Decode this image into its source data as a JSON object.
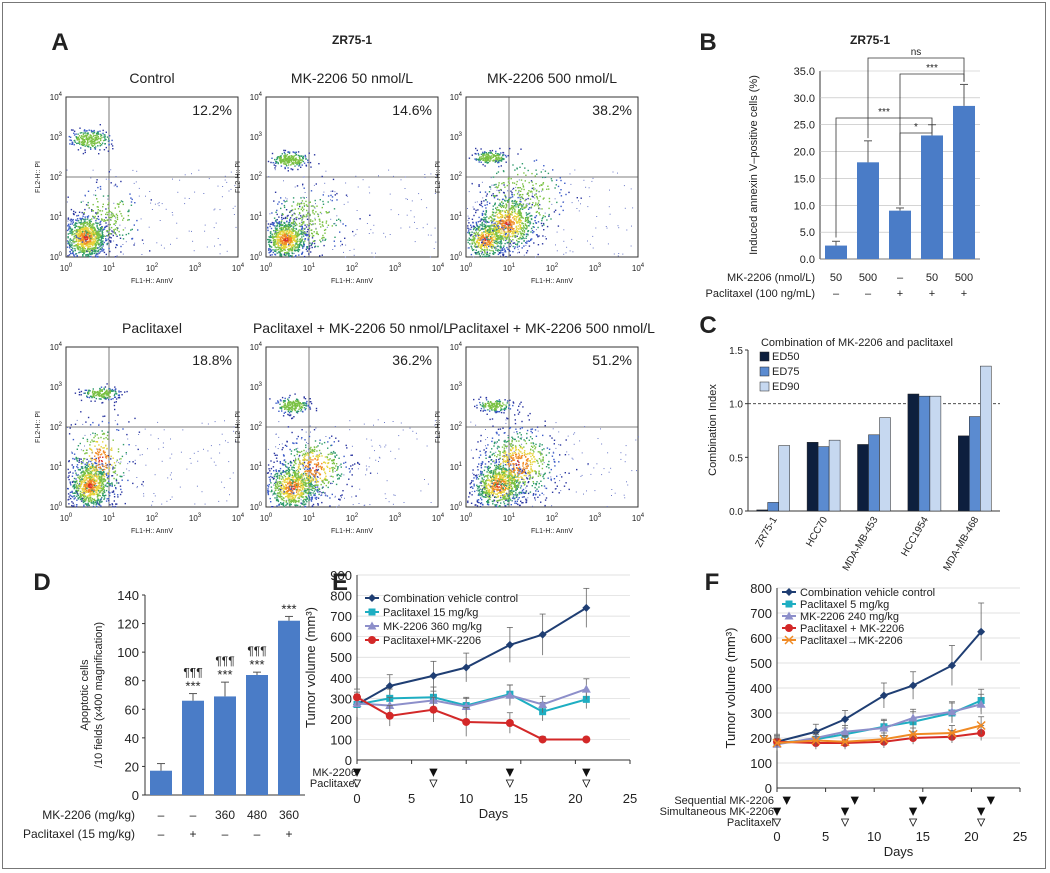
{
  "colors": {
    "bar_blue": "#4a7cc7",
    "navy": "#1f3e73",
    "cyan": "#1eaec2",
    "purple": "#8d8fca",
    "red": "#d32828",
    "orange": "#f08a24",
    "ed50": "#0d1f3e",
    "ed75": "#5b8bd0",
    "ed90": "#c6d8f0",
    "axis": "#333333"
  },
  "panelA": {
    "letter": "A",
    "cell_line": "ZR75-1",
    "x_axis_label": "FL1-H:: AnnV",
    "y_axis_label": "FL2-H:: PI",
    "tick_base": "10",
    "tick_exponents": [
      "0",
      "1",
      "2",
      "3",
      "4"
    ],
    "plots": [
      {
        "title": "Control",
        "percent": "12.2%"
      },
      {
        "title": "MK-2206 50 nmol/L",
        "percent": "14.6%"
      },
      {
        "title": "MK-2206 500 nmol/L",
        "percent": "38.2%"
      },
      {
        "title": "Paclitaxel",
        "percent": "18.8%"
      },
      {
        "title": "Paclitaxel + MK-2206 50 nmol/L",
        "percent": "36.2%"
      },
      {
        "title": "Paclitaxel + MK-2206 500 nmol/L",
        "percent": "51.2%"
      }
    ]
  },
  "chart_data": [
    {
      "panel": "B",
      "type": "bar",
      "title": "ZR75-1",
      "ylabel": "Induced annexin V–positive cells (%)",
      "ylim": [
        0,
        35
      ],
      "yticks": [
        "0.0",
        "5.0",
        "10.0",
        "15.0",
        "20.0",
        "25.0",
        "30.0",
        "35.0"
      ],
      "values": [
        2.5,
        18.0,
        9.0,
        23.0,
        28.5
      ],
      "errors": [
        0.8,
        4.0,
        0.5,
        2.0,
        4.0
      ],
      "row_labels": [
        "MK-2206 (nmol/L)",
        "Paclitaxel (100 ng/mL)"
      ],
      "mk2206": [
        "50",
        "500",
        "–",
        "50",
        "500"
      ],
      "paclitaxel": [
        "–",
        "–",
        "+",
        "+",
        "+"
      ],
      "significance": [
        "ns",
        "***",
        "***",
        "*"
      ]
    },
    {
      "panel": "C",
      "type": "bar",
      "title": "Combination  of MK-2206 and  paclitaxel",
      "ylabel": "Combination Index",
      "ylim": [
        0,
        1.5
      ],
      "yticks": [
        "0.0",
        "0.5",
        "1.0",
        "1.5"
      ],
      "reference_line": 1.0,
      "categories": [
        "ZR75-1",
        "HCC70",
        "MDA-MB-453",
        "HCC1954",
        "MDA-MB-468"
      ],
      "series": [
        {
          "name": "ED50",
          "values": [
            0.01,
            0.64,
            0.62,
            1.09,
            0.7
          ]
        },
        {
          "name": "ED75",
          "values": [
            0.08,
            0.6,
            0.71,
            1.07,
            0.88
          ]
        },
        {
          "name": "ED90",
          "values": [
            0.61,
            0.66,
            0.87,
            1.07,
            1.35
          ]
        }
      ]
    },
    {
      "panel": "D",
      "type": "bar",
      "ylabel": "Apoptotic cells /10 fields (x400 magnification)",
      "ylim": [
        0,
        140
      ],
      "yticks": [
        "0",
        "20",
        "40",
        "60",
        "80",
        "100",
        "120",
        "140"
      ],
      "values": [
        17,
        66,
        69,
        84,
        122
      ],
      "errors": [
        5,
        5,
        10,
        2,
        3
      ],
      "row_labels": [
        "MK-2206 (mg/kg)",
        "Paclitaxel (15 mg/kg)"
      ],
      "mk2206": [
        "–",
        "–",
        "360",
        "480",
        "360"
      ],
      "paclitaxel": [
        "–",
        "+",
        "–",
        "–",
        "+"
      ],
      "stars": [
        "",
        "***",
        "***",
        "***",
        "***"
      ],
      "pilcrows": [
        "",
        "¶¶¶",
        "¶¶¶",
        "¶¶¶",
        ""
      ]
    },
    {
      "panel": "E",
      "type": "line",
      "xlabel": "Days",
      "ylabel": "Tumor volume (mm³)",
      "xlim": [
        0,
        25
      ],
      "ylim": [
        0,
        900
      ],
      "xticks": [
        "0",
        "5",
        "10",
        "15",
        "20",
        "25"
      ],
      "yticks": [
        "0",
        "100",
        "200",
        "300",
        "400",
        "500",
        "600",
        "700",
        "800",
        "900"
      ],
      "series": [
        {
          "name": "Combination vehicle control",
          "x": [
            0,
            3,
            7,
            10,
            14,
            17,
            21
          ],
          "y": [
            270,
            360,
            410,
            450,
            560,
            610,
            740
          ],
          "err": [
            60,
            55,
            70,
            70,
            85,
            100,
            95
          ]
        },
        {
          "name": "Paclitaxel 15 mg/kg",
          "x": [
            0,
            3,
            7,
            10,
            14,
            17,
            21
          ],
          "y": [
            270,
            300,
            305,
            265,
            320,
            235,
            295
          ],
          "err": [
            50,
            45,
            50,
            40,
            45,
            45,
            45
          ]
        },
        {
          "name": "MK-2206 360 mg/kg",
          "x": [
            0,
            3,
            7,
            10,
            14,
            17,
            21
          ],
          "y": [
            275,
            265,
            290,
            260,
            315,
            270,
            345
          ],
          "err": [
            45,
            40,
            45,
            40,
            50,
            40,
            50
          ]
        },
        {
          "name": "Paclitaxel+MK-2206",
          "x": [
            0,
            3,
            7,
            10,
            14,
            17,
            21
          ],
          "y": [
            305,
            215,
            245,
            185,
            180,
            100,
            100
          ],
          "err": [
            40,
            50,
            60,
            70,
            50,
            15,
            10
          ]
        }
      ],
      "dosing": {
        "MK-2206": [
          0,
          7,
          14,
          21
        ],
        "Paclitaxel": [
          0,
          7,
          14,
          21
        ]
      },
      "dosing_labels": [
        "MK-2206",
        "Paclitaxel"
      ]
    },
    {
      "panel": "F",
      "type": "line",
      "xlabel": "Days",
      "ylabel": "Tumor volume (mm³)",
      "xlim": [
        0,
        25
      ],
      "ylim": [
        0,
        800
      ],
      "xticks": [
        "0",
        "5",
        "10",
        "15",
        "20",
        "25"
      ],
      "yticks": [
        "0",
        "100",
        "200",
        "300",
        "400",
        "500",
        "600",
        "700",
        "800"
      ],
      "series": [
        {
          "name": "Combination vehicle control",
          "x": [
            0,
            4,
            7,
            11,
            14,
            18,
            21
          ],
          "y": [
            185,
            225,
            275,
            370,
            410,
            490,
            625
          ],
          "err": [
            30,
            30,
            35,
            50,
            55,
            80,
            115
          ]
        },
        {
          "name": "Paclitaxel 5 mg/kg",
          "x": [
            0,
            4,
            7,
            11,
            14,
            18,
            21
          ],
          "y": [
            180,
            195,
            215,
            245,
            265,
            300,
            350
          ],
          "err": [
            25,
            20,
            25,
            30,
            40,
            40,
            45
          ]
        },
        {
          "name": "MK-2206 240 mg/kg",
          "x": [
            0,
            4,
            7,
            11,
            14,
            18,
            21
          ],
          "y": [
            175,
            200,
            225,
            240,
            280,
            305,
            335
          ],
          "err": [
            25,
            25,
            25,
            30,
            35,
            40,
            40
          ]
        },
        {
          "name": "Paclitaxel + MK-2206",
          "x": [
            0,
            4,
            7,
            11,
            14,
            18,
            21
          ],
          "y": [
            185,
            180,
            180,
            185,
            200,
            205,
            220
          ],
          "err": [
            25,
            25,
            25,
            25,
            25,
            25,
            30
          ]
        },
        {
          "name": "Paclitaxel→MK-2206",
          "x": [
            0,
            4,
            7,
            11,
            14,
            18,
            21
          ],
          "y": [
            180,
            190,
            185,
            195,
            215,
            220,
            250
          ],
          "err": [
            20,
            25,
            25,
            25,
            25,
            30,
            35
          ]
        }
      ],
      "dosing": {
        "Sequential MK-2206": [
          1,
          8,
          15,
          22
        ],
        "Simultaneous MK-2206": [
          0,
          7,
          14,
          21
        ],
        "Paclitaxel": [
          0,
          7,
          14,
          21
        ]
      },
      "dosing_labels": [
        "Sequential MK-2206",
        "Simultaneous MK-2206",
        "Paclitaxel"
      ]
    }
  ]
}
